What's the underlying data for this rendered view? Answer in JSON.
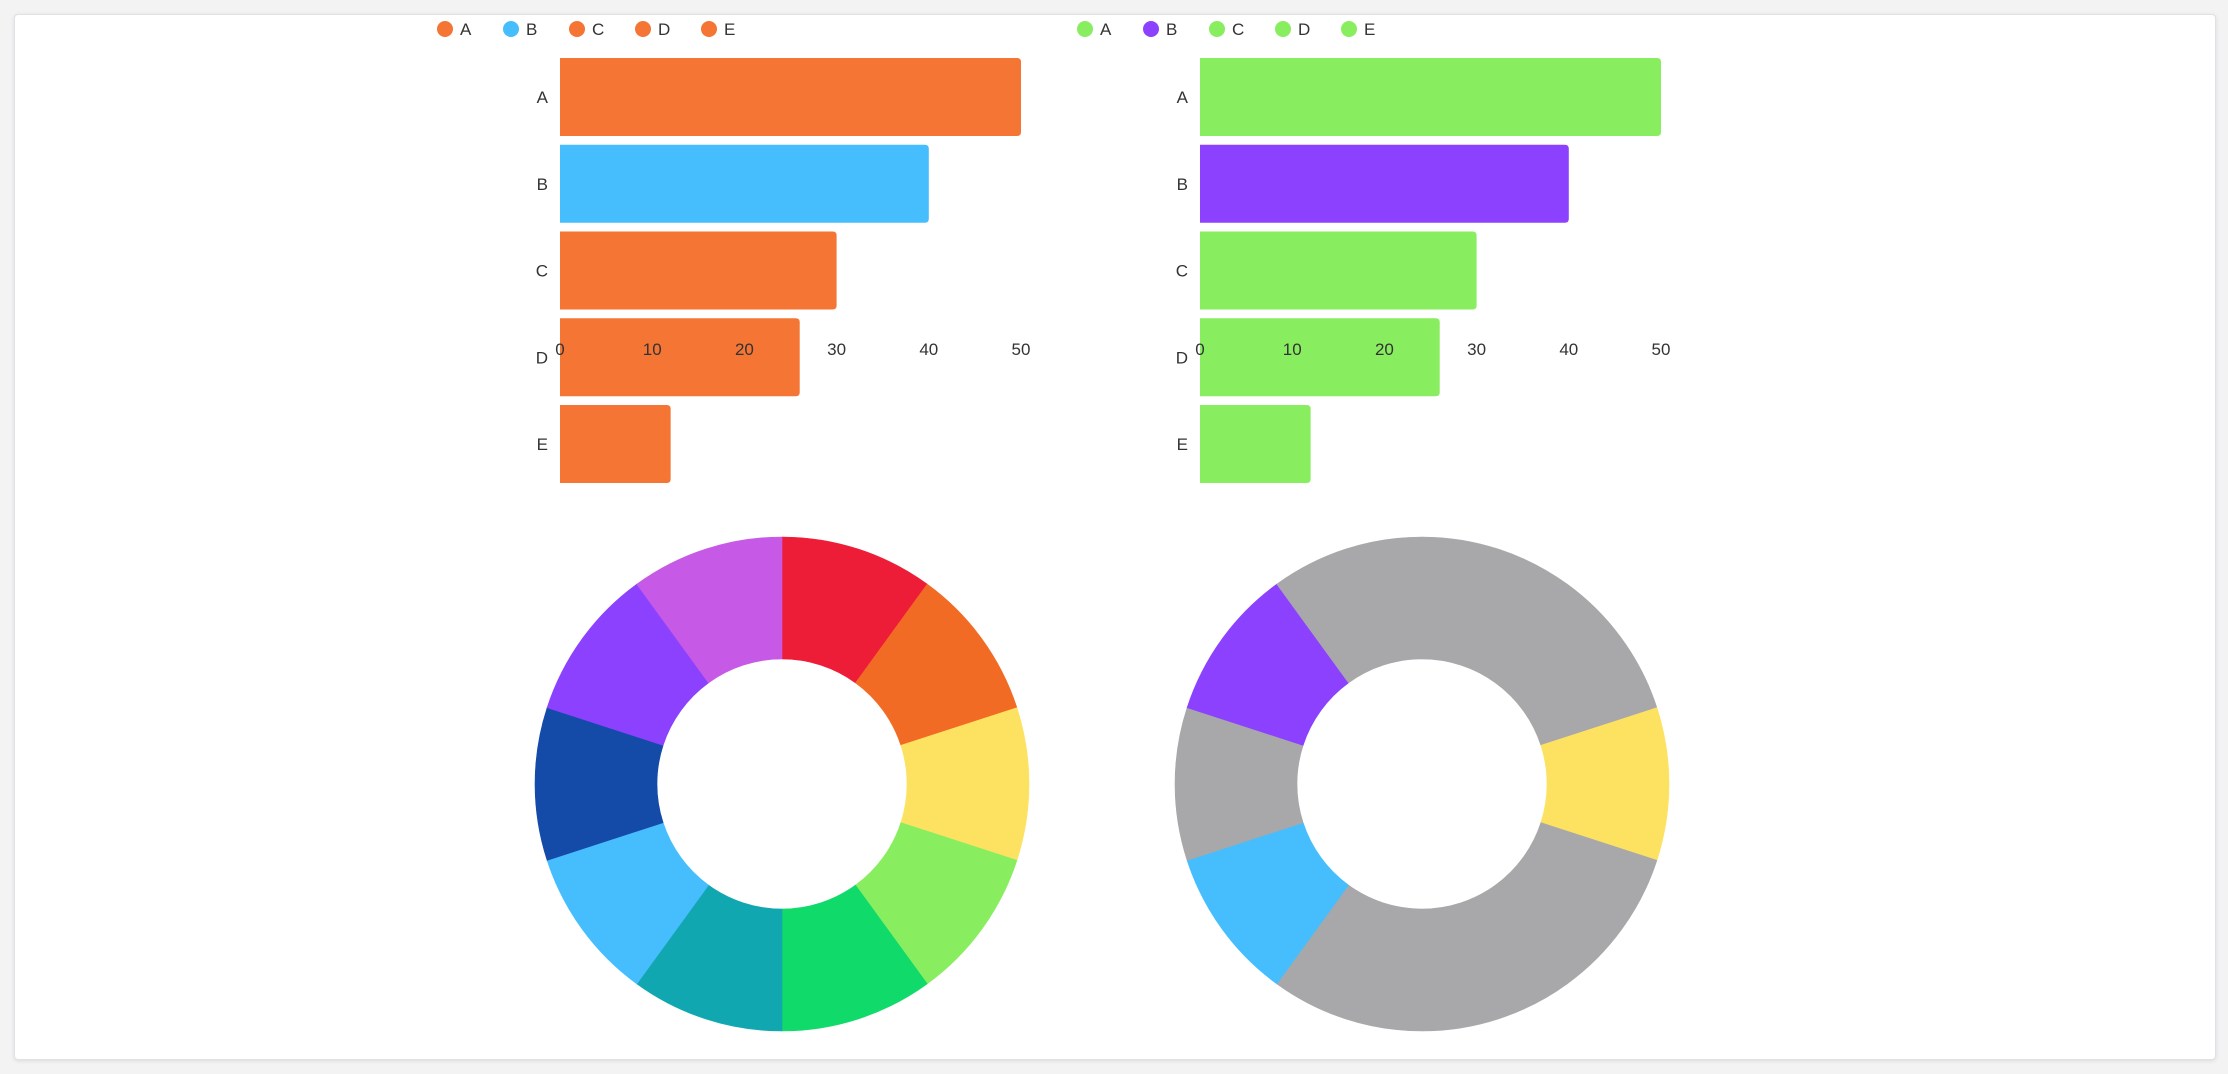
{
  "chart_data": [
    {
      "type": "bar",
      "orientation": "horizontal",
      "categories": [
        "A",
        "B",
        "C",
        "D",
        "E"
      ],
      "values": [
        50,
        40,
        30,
        26,
        12
      ],
      "colors": [
        "#f47534",
        "#46bdfd",
        "#f47534",
        "#f47534",
        "#f47534"
      ],
      "legend": [
        "A",
        "B",
        "C",
        "D",
        "E"
      ],
      "legend_position": "top",
      "xlim": [
        0,
        50
      ],
      "xticks": [
        0,
        10,
        20,
        30,
        40,
        50
      ],
      "grid": false
    },
    {
      "type": "bar",
      "orientation": "horizontal",
      "categories": [
        "A",
        "B",
        "C",
        "D",
        "E"
      ],
      "values": [
        50,
        40,
        30,
        26,
        12
      ],
      "colors": [
        "#88ee5f",
        "#8b41fd",
        "#88ee5f",
        "#88ee5f",
        "#88ee5f"
      ],
      "legend": [
        "A",
        "B",
        "C",
        "D",
        "E"
      ],
      "legend_position": "top",
      "xlim": [
        0,
        50
      ],
      "xticks": [
        0,
        10,
        20,
        30,
        40,
        50
      ],
      "grid": false
    },
    {
      "type": "pie",
      "donut": true,
      "values": [
        1,
        1,
        1,
        1,
        1,
        1,
        1,
        1,
        1,
        1
      ],
      "colors": [
        "#ee1d37",
        "#f26b25",
        "#fde262",
        "#88ee5f",
        "#10da69",
        "#11a7b1",
        "#46bdfd",
        "#144aa8",
        "#8b41fd",
        "#c65ae6"
      ]
    },
    {
      "type": "pie",
      "donut": true,
      "values": [
        1,
        1,
        1,
        1,
        1,
        1,
        1,
        1,
        1,
        1
      ],
      "colors": [
        "#a8a8aa",
        "#a8a8aa",
        "#fde262",
        "#a8a8aa",
        "#a8a8aa",
        "#a8a8aa",
        "#46bdfd",
        "#a8a8aa",
        "#8b41fd",
        "#a8a8aa"
      ]
    }
  ]
}
